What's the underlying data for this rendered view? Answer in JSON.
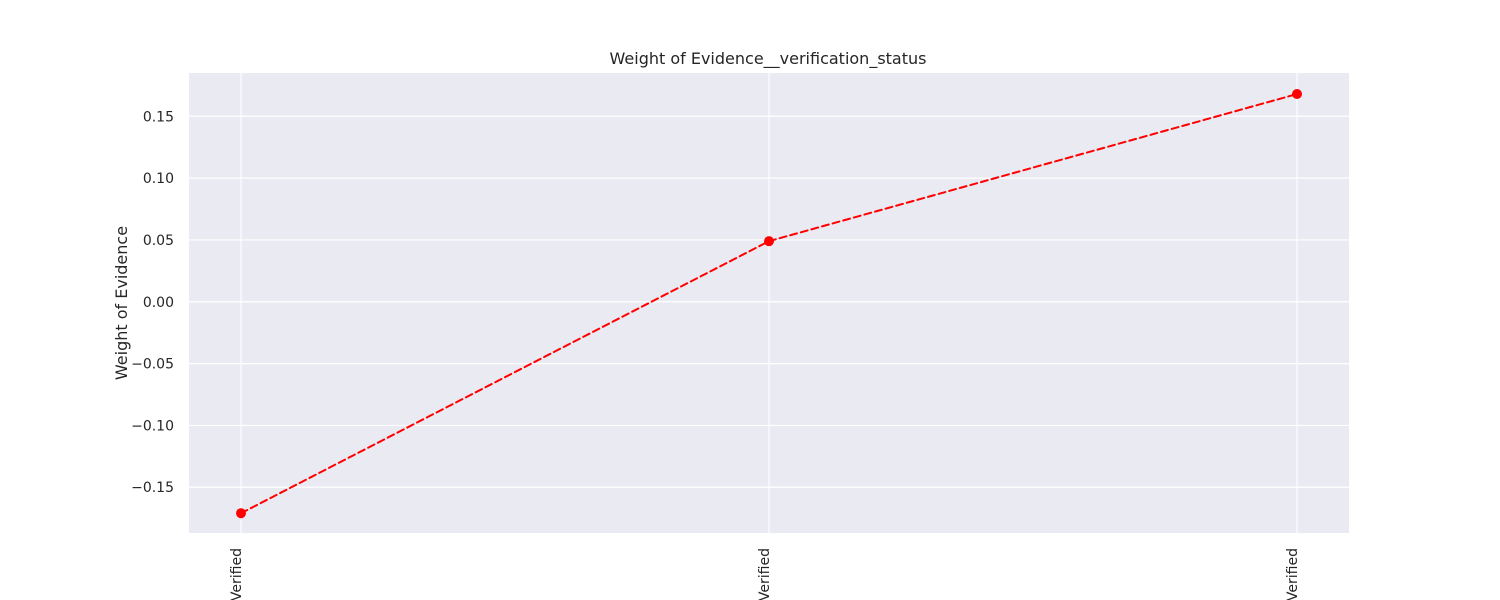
{
  "chart_data": {
    "type": "line",
    "title": "Weight of Evidence__verification_status",
    "xlabel": "",
    "ylabel": "Weight of Evidence",
    "categories": [
      "Verified",
      "Verified",
      "Verified"
    ],
    "series": [
      {
        "values": [
          -0.171,
          0.049,
          0.168
        ],
        "line_style": "dashed",
        "marker": "circle"
      }
    ],
    "ylim": [
      -0.187,
      0.185
    ],
    "yticks": [
      -0.15,
      -0.1,
      -0.05,
      0.0,
      0.05,
      0.1,
      0.15
    ],
    "ytick_labels": [
      "−0.15",
      "−0.10",
      "−0.05",
      "0.00",
      "0.05",
      "0.10",
      "0.15"
    ],
    "grid": true,
    "legend": "none",
    "colors": {
      "series": "#ff0000",
      "plot_background": "#eaeaf2",
      "grid": "#ffffff",
      "text": "#262626"
    }
  }
}
